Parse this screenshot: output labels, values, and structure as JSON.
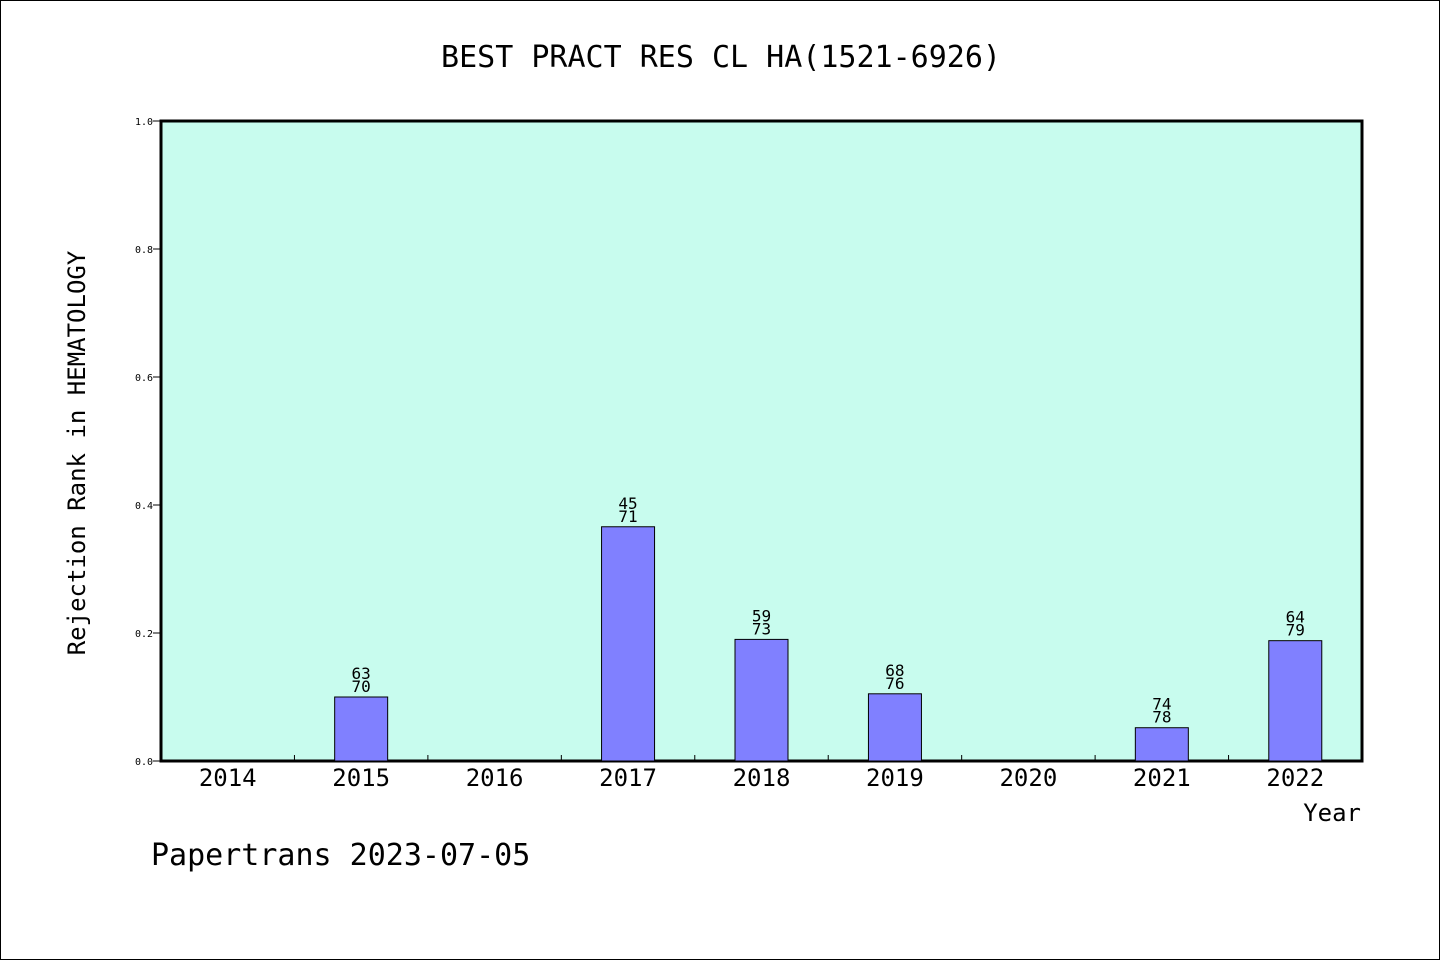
{
  "chart_data": {
    "type": "bar",
    "title": "BEST PRACT RES CL HA(1521-6926)",
    "xlabel": "Year",
    "ylabel": "Rejection Rank in HEMATOLOGY",
    "ylim": [
      0,
      1.0
    ],
    "yticks": [
      "0.0",
      "0.2",
      "0.4",
      "0.6",
      "0.8",
      "1.0"
    ],
    "categories": [
      "2014",
      "2015",
      "2016",
      "2017",
      "2018",
      "2019",
      "2020",
      "2021",
      "2022"
    ],
    "values": [
      0,
      0.1,
      0,
      0.366,
      0.19,
      0.105,
      0,
      0.052,
      0.188
    ],
    "labels": [
      null,
      [
        "63",
        "70"
      ],
      null,
      [
        "45",
        "71"
      ],
      [
        "59",
        "73"
      ],
      [
        "68",
        "76"
      ],
      null,
      [
        "74",
        "78"
      ],
      [
        "64",
        "79"
      ]
    ],
    "grid": false,
    "colors": {
      "plot_bg": "#c8fcee",
      "bar_fill": "#8080ff",
      "bar_stroke": "#000000"
    }
  },
  "footer": {
    "text": "Papertrans 2023-07-05"
  }
}
